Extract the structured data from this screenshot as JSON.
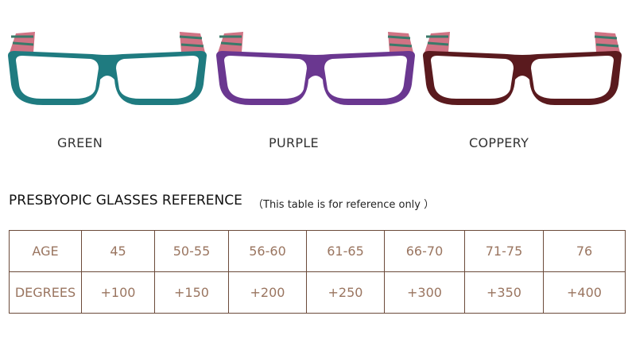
{
  "products": [
    {
      "label": "GREEN",
      "frame_color": "#1f7b80"
    },
    {
      "label": "PURPLE",
      "frame_color": "#6a3790"
    },
    {
      "label": "COPPERY",
      "frame_color": "#5a1a1e"
    }
  ],
  "table": {
    "title": "PRESBYOPIC GLASSES REFERENCE",
    "note": "（This table is for reference only ）",
    "rows": [
      [
        "AGE",
        "45",
        "50-55",
        "56-60",
        "61-65",
        "66-70",
        "71-75",
        "76"
      ],
      [
        "DEGREES",
        "+100",
        "+150",
        "+200",
        "+250",
        "+300",
        "+350",
        "+400"
      ]
    ]
  }
}
